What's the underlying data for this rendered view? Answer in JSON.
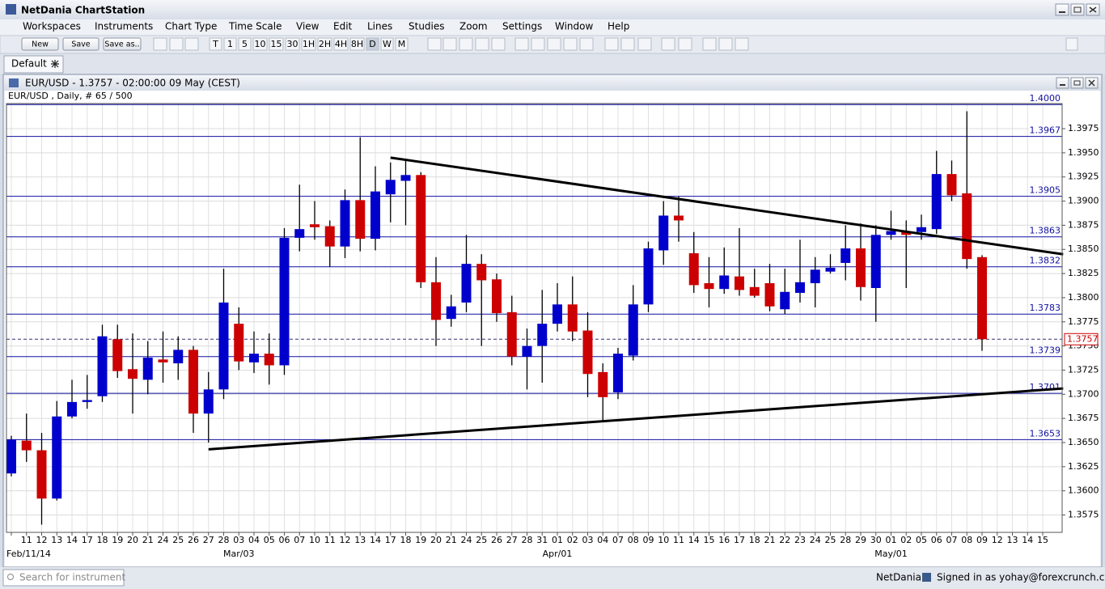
{
  "app": {
    "title": "NetDania ChartStation",
    "menu": [
      "Workspaces",
      "Instruments",
      "Chart Type",
      "Time Scale",
      "View",
      "Edit",
      "Lines",
      "Studies",
      "Zoom",
      "Settings",
      "Window",
      "Help"
    ],
    "toolbar_buttons": [
      "New",
      "Save",
      "Save as.."
    ],
    "timeframes": [
      "T",
      "1",
      "5",
      "10",
      "15",
      "30",
      "1H",
      "2H",
      "4H",
      "8H",
      "D",
      "W",
      "M"
    ],
    "tab": "Default"
  },
  "status_bar": {
    "search_placeholder": "Search for instrument",
    "brand": "NetDania",
    "signed_in": "Signed in as yohay@forexcrunch.com"
  },
  "chart_data": {
    "type": "candlestick",
    "title": "EUR/USD - 1.3757 - 02:00:00  09 May (CEST)",
    "subtitle": "EUR/USD , Daily, # 65 / 500",
    "categories": [
      null,
      "11",
      "12",
      "13",
      "14",
      "17",
      "18",
      "19",
      "20",
      "21",
      "24",
      "25",
      "26",
      "27",
      "28",
      "03",
      "04",
      "05",
      "06",
      "07",
      "10",
      "11",
      "12",
      "13",
      "14",
      "17",
      "18",
      "19",
      "20",
      "21",
      "24",
      "25",
      "26",
      "27",
      "28",
      "31",
      "01",
      "02",
      "03",
      "04",
      "07",
      "08",
      "09",
      "10",
      "11",
      "14",
      "15",
      "16",
      "17",
      "18",
      "21",
      "22",
      "23",
      "24",
      "25",
      "28",
      "29",
      "30",
      "01",
      "02",
      "05",
      "06",
      "07",
      "08",
      "09",
      "12",
      "13",
      "14",
      "15"
    ],
    "period_labels": [
      null,
      "Feb/11/14",
      null,
      null,
      null,
      null,
      null,
      null,
      null,
      null,
      null,
      null,
      null,
      null,
      null,
      "Mar/03",
      null,
      null,
      null,
      null,
      null,
      null,
      null,
      null,
      null,
      null,
      null,
      null,
      null,
      null,
      null,
      null,
      null,
      null,
      null,
      null,
      "Apr/01",
      null,
      null,
      null,
      null,
      null,
      null,
      null,
      null,
      null,
      null,
      null,
      null,
      null,
      null,
      null,
      null,
      null,
      null,
      null,
      null,
      null,
      "May/01",
      null,
      null,
      null,
      null,
      null,
      null,
      null,
      null,
      null,
      null
    ],
    "open": [
      1.3618,
      1.3652,
      1.3642,
      1.3592,
      1.3677,
      1.3692,
      1.3698,
      1.3757,
      1.3726,
      1.3715,
      1.3736,
      1.3732,
      1.3746,
      1.368,
      1.3705,
      1.3773,
      1.3733,
      1.3742,
      1.373,
      1.3862,
      1.3876,
      1.3874,
      1.3853,
      1.3901,
      1.3861,
      1.3907,
      1.3921,
      1.3927,
      1.3816,
      1.3778,
      1.3795,
      1.3835,
      1.3819,
      1.3785,
      1.3739,
      1.375,
      1.3773,
      1.3793,
      1.3766,
      1.3723,
      1.3702,
      1.374,
      1.3793,
      1.3849,
      1.3885,
      1.3846,
      1.3815,
      1.3809,
      1.3822,
      1.3811,
      1.3815,
      1.3788,
      1.3805,
      1.3815,
      1.3827,
      1.3836,
      1.3851,
      1.381,
      1.3865,
      1.3868,
      1.3868,
      1.3871,
      1.3928,
      1.3908,
      1.3842,
      null,
      null,
      null,
      null
    ],
    "high": [
      1.3657,
      1.368,
      1.366,
      1.3693,
      1.3715,
      1.372,
      1.3772,
      1.3772,
      1.3763,
      1.3755,
      1.3765,
      1.376,
      1.375,
      1.3723,
      1.383,
      1.379,
      1.3765,
      1.3763,
      1.3872,
      1.3917,
      1.39,
      1.388,
      1.3912,
      1.3966,
      1.3936,
      1.394,
      1.3943,
      1.393,
      1.3842,
      1.3803,
      1.3865,
      1.3845,
      1.3825,
      1.3802,
      1.3768,
      1.3808,
      1.3815,
      1.3822,
      1.3785,
      1.3732,
      1.3748,
      1.3813,
      1.3858,
      1.39,
      1.3905,
      1.3868,
      1.3842,
      1.3852,
      1.3872,
      1.383,
      1.3835,
      1.383,
      1.386,
      1.3842,
      1.3845,
      1.3875,
      1.3877,
      1.3875,
      1.389,
      1.388,
      1.3886,
      1.3952,
      1.3942,
      1.3993,
      1.3844,
      null,
      null,
      null,
      null
    ],
    "low": [
      1.3615,
      1.363,
      1.3565,
      1.359,
      1.3675,
      1.3685,
      1.3692,
      1.3717,
      1.368,
      1.37,
      1.3712,
      1.3715,
      1.366,
      1.365,
      1.3695,
      1.3725,
      1.3722,
      1.371,
      1.372,
      1.3848,
      1.386,
      1.3832,
      1.3841,
      1.3848,
      1.3849,
      1.3878,
      1.3875,
      1.381,
      1.375,
      1.377,
      1.3785,
      1.375,
      1.3775,
      1.373,
      1.3705,
      1.3712,
      1.3765,
      1.3755,
      1.3697,
      1.3673,
      1.3695,
      1.3735,
      1.3785,
      1.3834,
      1.3858,
      1.3805,
      1.379,
      1.3804,
      1.3802,
      1.38,
      1.3786,
      1.3783,
      1.3795,
      1.379,
      1.3825,
      1.3818,
      1.3797,
      1.3775,
      1.386,
      1.381,
      1.386,
      1.3866,
      1.39,
      1.383,
      1.3745,
      null,
      null,
      null,
      null
    ],
    "close": [
      1.3653,
      1.3642,
      1.3592,
      1.3677,
      1.3692,
      1.3694,
      1.376,
      1.3724,
      1.3716,
      1.3738,
      1.3733,
      1.3746,
      1.368,
      1.3705,
      1.3795,
      1.3734,
      1.3742,
      1.373,
      1.3862,
      1.3871,
      1.3873,
      1.3853,
      1.3901,
      1.3861,
      1.391,
      1.3922,
      1.3927,
      1.3816,
      1.3777,
      1.3791,
      1.3835,
      1.3818,
      1.3784,
      1.3739,
      1.375,
      1.3773,
      1.3793,
      1.3765,
      1.3721,
      1.3697,
      1.3742,
      1.3793,
      1.3851,
      1.3885,
      1.388,
      1.3813,
      1.3809,
      1.3823,
      1.3808,
      1.3802,
      1.3791,
      1.3806,
      1.3816,
      1.3829,
      1.3831,
      1.3851,
      1.3811,
      1.3865,
      1.3869,
      1.3865,
      1.3873,
      1.3928,
      1.3906,
      1.384,
      1.3757,
      null,
      null,
      null,
      null
    ],
    "up_color": "#0000cc",
    "down_color": "#cc0000",
    "ylim": [
      1.3557,
      1.4001
    ],
    "yticks": [
      1.3575,
      {
        "value": 1.36,
        "label": "1.3600"
      },
      1.3625,
      {
        "value": 1.365,
        "label": "1.3650"
      },
      1.3675,
      {
        "value": 1.37,
        "label": "1.3700"
      },
      1.3725,
      {
        "value": 1.375,
        "label": "1.3750"
      },
      1.3775,
      {
        "value": 1.38,
        "label": "1.3800"
      },
      1.3825,
      {
        "value": 1.385,
        "label": "1.3850"
      },
      1.3875,
      {
        "value": 1.39,
        "label": "1.3900"
      },
      1.3925,
      {
        "value": 1.395,
        "label": "1.3950"
      },
      1.3975
    ],
    "grid": true,
    "levels_color": "#1010a0",
    "levels": [
      {
        "value": 1.4,
        "label": "1.4000"
      },
      {
        "value": 1.3967,
        "label": "1.3967"
      },
      {
        "value": 1.3905,
        "label": "1.3905"
      },
      {
        "value": 1.3863,
        "label": "1.3863"
      },
      {
        "value": 1.3832,
        "label": "1.3832"
      },
      {
        "value": 1.3783,
        "label": "1.3783"
      },
      {
        "value": 1.3739,
        "label": "1.3739"
      },
      {
        "value": 1.3701,
        "label": "1.3701"
      },
      {
        "value": 1.3653,
        "label": "1.3653"
      }
    ],
    "current_price": 1.3757,
    "trendline_color": "#000000",
    "trendlines": [
      {
        "x": [
          25,
          69.35
        ],
        "values": [
          1.3945,
          1.3845
        ]
      },
      {
        "x": [
          13,
          69.35
        ],
        "values": [
          1.3643,
          1.3706
        ]
      }
    ]
  }
}
